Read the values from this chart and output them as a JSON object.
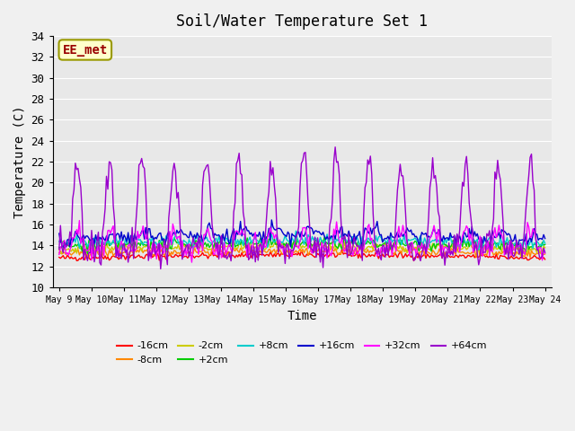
{
  "title": "Soil/Water Temperature Set 1",
  "xlabel": "Time",
  "ylabel": "Temperature (C)",
  "ylim": [
    10,
    34
  ],
  "yticks": [
    10,
    12,
    14,
    16,
    18,
    20,
    22,
    24,
    26,
    28,
    30,
    32,
    34
  ],
  "start_day": 9,
  "end_day": 24,
  "annotation": "EE_met",
  "background_color": "#e8e8e8",
  "plot_bg_color": "#e8e8e8",
  "series": [
    {
      "label": "-16cm",
      "color": "#ff0000",
      "base": 12.8,
      "amp": 0.3,
      "noise": 0.15
    },
    {
      "label": "-8cm",
      "color": "#ff8800",
      "base": 13.2,
      "amp": 0.4,
      "noise": 0.18
    },
    {
      "label": "-2cm",
      "color": "#cccc00",
      "base": 13.6,
      "amp": 0.5,
      "noise": 0.22
    },
    {
      "label": "+2cm",
      "color": "#00cc00",
      "base": 13.9,
      "amp": 0.6,
      "noise": 0.25
    },
    {
      "label": "+8cm",
      "color": "#00cccc",
      "base": 14.2,
      "amp": 0.7,
      "noise": 0.28
    },
    {
      "label": "+16cm",
      "color": "#0000cc",
      "base": 14.6,
      "amp": 1.0,
      "noise": 0.35
    },
    {
      "label": "+32cm",
      "color": "#ff00ff",
      "base": 14.0,
      "amp": 2.5,
      "noise": 0.5
    },
    {
      "label": "+64cm",
      "color": "#9900cc",
      "base": 14.0,
      "amp": 8.0,
      "noise": 0.8
    }
  ]
}
